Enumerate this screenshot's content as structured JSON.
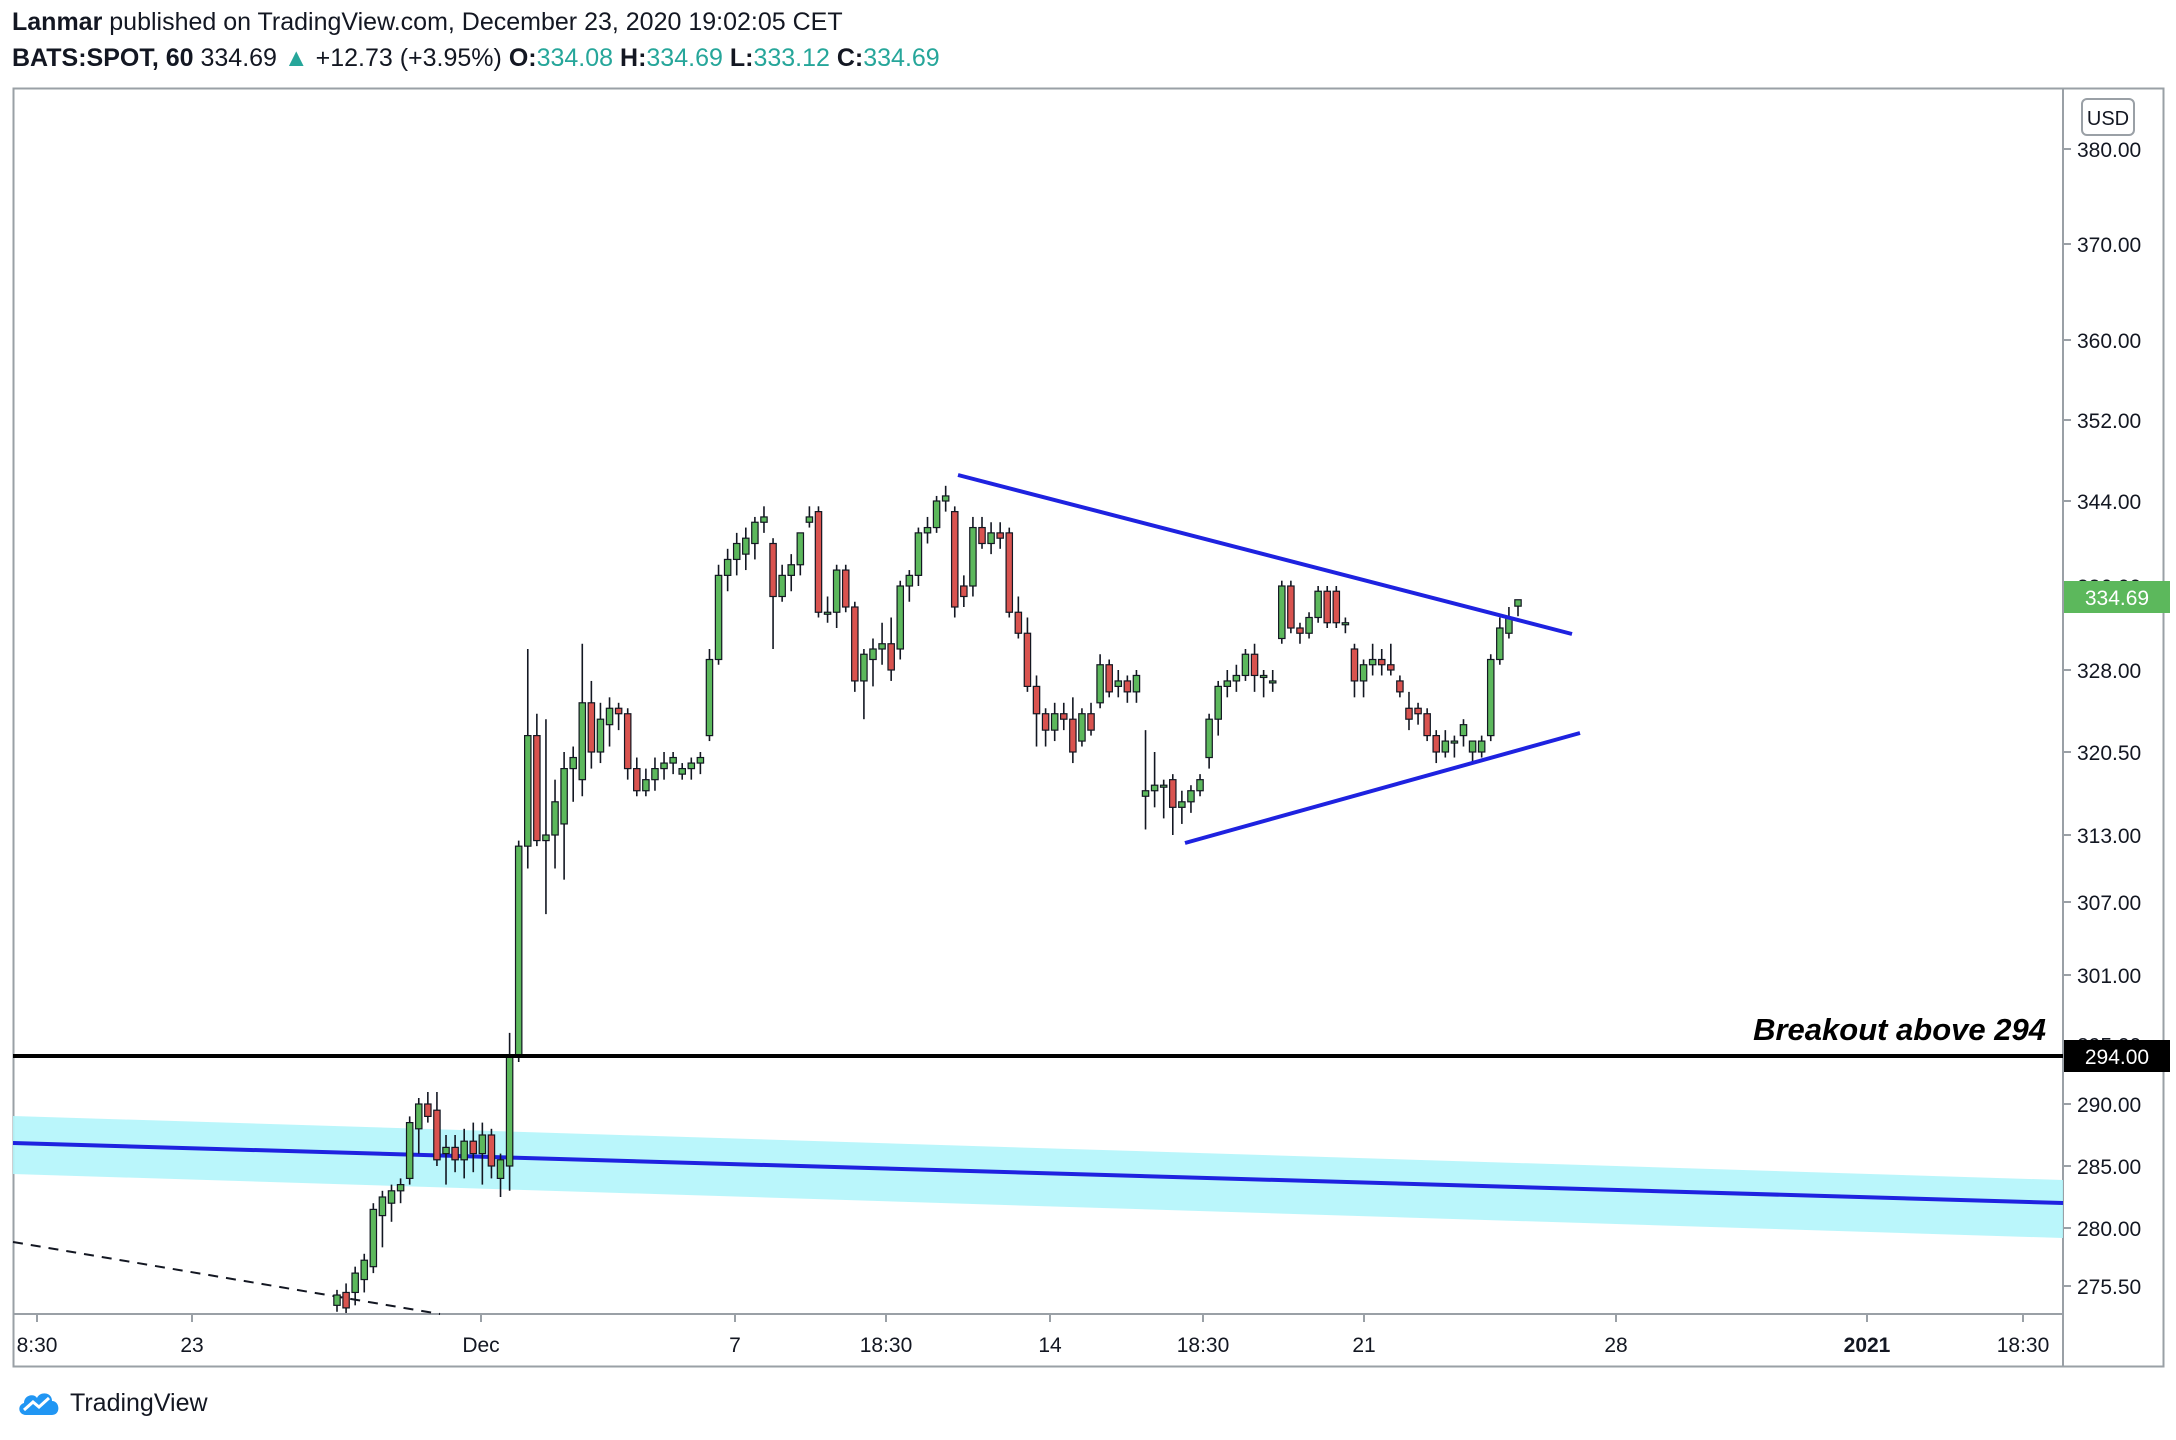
{
  "header": {
    "author": "Lanmar",
    "published_text": "published on TradingView.com, December 23, 2020 19:02:05 CET",
    "symbol_interval": "BATS:SPOT, 60",
    "last_price": "334.69",
    "change": "+12.73 (+3.95%)",
    "open_label": "O:",
    "open_value": "334.08",
    "high_label": "H:",
    "high_value": "334.69",
    "low_label": "L:",
    "low_value": "333.12",
    "close_label": "C:",
    "close_value": "334.69",
    "up_arrow_icon": "triangle-up-icon"
  },
  "chart_data": {
    "type": "candlestick",
    "currency": "USD",
    "y_ticks": [
      "380.00",
      "370.00",
      "360.00",
      "352.00",
      "344.00",
      "336.00",
      "328.00",
      "320.50",
      "313.00",
      "307.00",
      "301.00",
      "295.00",
      "290.00",
      "285.00",
      "280.00",
      "275.50"
    ],
    "x_ticks": [
      "8:30",
      "23",
      "Dec",
      "7",
      "18:30",
      "14",
      "18:30",
      "21",
      "28",
      "2021",
      "18:30"
    ],
    "price_label": "334.69",
    "level_label": "294.00",
    "annotation": "Breakout above 294",
    "colors": {
      "up": "#5cb85c",
      "down": "#d9534f",
      "trend": "#1e22e0",
      "channel": "#b2f5fb",
      "price_badge": "#5cb85c"
    },
    "horizontal_level": 294.0,
    "candles": [
      {
        "x": "Nov 25",
        "o": 274.0,
        "h": 275.2,
        "l": 273.5,
        "c": 274.8
      },
      {
        "x": "Nov 26",
        "o": 275.0,
        "h": 275.7,
        "l": 273.0,
        "c": 273.8
      },
      {
        "x": "Nov 27",
        "o": 275.0,
        "h": 277.0,
        "l": 274.0,
        "c": 276.5
      },
      {
        "x": "Nov 30",
        "o": 276.0,
        "h": 278.0,
        "l": 275.0,
        "c": 277.5
      },
      {
        "x": "Nov 30b",
        "o": 277.0,
        "h": 282.0,
        "l": 276.5,
        "c": 281.5
      },
      {
        "x": "Nov 30c",
        "o": 281.0,
        "h": 283.0,
        "l": 278.5,
        "c": 282.5
      },
      {
        "x": "Nov 30d",
        "o": 282.0,
        "h": 283.5,
        "l": 280.5,
        "c": 283.0
      },
      {
        "x": "Nov 30e",
        "o": 283.0,
        "h": 284.0,
        "l": 282.0,
        "c": 283.5
      },
      {
        "x": "Dec 1",
        "o": 284.0,
        "h": 289.0,
        "l": 283.5,
        "c": 288.5
      },
      {
        "x": "Dec 1b",
        "o": 288.0,
        "h": 290.5,
        "l": 286.0,
        "c": 290.0
      },
      {
        "x": "Dec 1c",
        "o": 290.0,
        "h": 291.0,
        "l": 288.5,
        "c": 289.0
      },
      {
        "x": "Dec 1d",
        "o": 289.5,
        "h": 291.0,
        "l": 285.0,
        "c": 285.5
      },
      {
        "x": "Dec 1e",
        "o": 286.0,
        "h": 287.5,
        "l": 283.5,
        "c": 286.5
      },
      {
        "x": "Dec 1f",
        "o": 286.5,
        "h": 287.5,
        "l": 284.5,
        "c": 285.5
      },
      {
        "x": "Dec 2",
        "o": 285.5,
        "h": 288.0,
        "l": 284.0,
        "c": 287.0
      },
      {
        "x": "Dec 2b",
        "o": 287.0,
        "h": 288.5,
        "l": 284.5,
        "c": 286.0
      },
      {
        "x": "Dec 2c",
        "o": 286.0,
        "h": 288.5,
        "l": 283.5,
        "c": 287.5
      },
      {
        "x": "Dec 2d",
        "o": 287.5,
        "h": 288.0,
        "l": 284.0,
        "c": 285.0
      },
      {
        "x": "Dec 2e",
        "o": 284.0,
        "h": 286.0,
        "l": 282.5,
        "c": 285.5
      },
      {
        "x": "Dec 2f",
        "o": 285.0,
        "h": 296.0,
        "l": 283.0,
        "c": 294.0
      },
      {
        "x": "Dec 3",
        "o": 294.0,
        "h": 312.5,
        "l": 293.5,
        "c": 312.0
      },
      {
        "x": "Dec 3b",
        "o": 312.0,
        "h": 330.0,
        "l": 310.0,
        "c": 322.0
      },
      {
        "x": "Dec 3c",
        "o": 322.0,
        "h": 324.0,
        "l": 312.0,
        "c": 312.5
      },
      {
        "x": "Dec 3d",
        "o": 312.5,
        "h": 323.5,
        "l": 306.0,
        "c": 313.0
      },
      {
        "x": "Dec 3e",
        "o": 313.0,
        "h": 318.0,
        "l": 310.0,
        "c": 316.0
      },
      {
        "x": "Dec 3f",
        "o": 314.0,
        "h": 320.5,
        "l": 309.0,
        "c": 319.0
      },
      {
        "x": "Dec 4",
        "o": 319.0,
        "h": 321.0,
        "l": 316.0,
        "c": 320.0
      },
      {
        "x": "Dec 4b",
        "o": 318.0,
        "h": 330.5,
        "l": 316.5,
        "c": 325.0
      },
      {
        "x": "Dec 4c",
        "o": 325.0,
        "h": 327.0,
        "l": 319.0,
        "c": 320.5
      },
      {
        "x": "Dec 4d",
        "o": 320.5,
        "h": 325.0,
        "l": 319.5,
        "c": 323.5
      },
      {
        "x": "Dec 4e",
        "o": 323.0,
        "h": 325.5,
        "l": 321.0,
        "c": 324.5
      },
      {
        "x": "Dec 4f",
        "o": 324.5,
        "h": 325.0,
        "l": 322.5,
        "c": 324.0
      },
      {
        "x": "Dec 4g",
        "o": 324.0,
        "h": 324.5,
        "l": 318.0,
        "c": 319.0
      },
      {
        "x": "Dec 4h",
        "o": 319.0,
        "h": 320.0,
        "l": 316.5,
        "c": 317.0
      },
      {
        "x": "Dec 4i",
        "o": 317.0,
        "h": 319.0,
        "l": 316.5,
        "c": 318.0
      },
      {
        "x": "Dec 4j",
        "o": 318.0,
        "h": 320.0,
        "l": 317.0,
        "c": 319.0
      },
      {
        "x": "Dec 4k",
        "o": 319.0,
        "h": 320.5,
        "l": 318.0,
        "c": 319.5
      },
      {
        "x": "Dec 4l",
        "o": 319.5,
        "h": 320.5,
        "l": 318.5,
        "c": 320.0
      },
      {
        "x": "Dec 4m",
        "o": 318.5,
        "h": 319.5,
        "l": 318.0,
        "c": 319.0
      },
      {
        "x": "Dec 4n",
        "o": 319.0,
        "h": 320.0,
        "l": 318.0,
        "c": 319.5
      },
      {
        "x": "Dec 4o",
        "o": 319.5,
        "h": 320.5,
        "l": 318.5,
        "c": 320.0
      },
      {
        "x": "Dec 7",
        "o": 322.0,
        "h": 330.0,
        "l": 321.5,
        "c": 329.0
      },
      {
        "x": "Dec 7b",
        "o": 329.0,
        "h": 338.0,
        "l": 328.5,
        "c": 337.0
      },
      {
        "x": "Dec 7c",
        "o": 337.0,
        "h": 339.5,
        "l": 335.5,
        "c": 338.5
      },
      {
        "x": "Dec 7d",
        "o": 338.5,
        "h": 341.0,
        "l": 337.0,
        "c": 340.0
      },
      {
        "x": "Dec 7e",
        "o": 339.0,
        "h": 341.5,
        "l": 337.5,
        "c": 340.5
      },
      {
        "x": "Dec 7f",
        "o": 340.0,
        "h": 342.5,
        "l": 338.5,
        "c": 342.0
      },
      {
        "x": "Dec 7g",
        "o": 342.0,
        "h": 343.5,
        "l": 341.0,
        "c": 342.5
      },
      {
        "x": "Dec 8",
        "o": 340.0,
        "h": 340.5,
        "l": 330.0,
        "c": 335.0
      },
      {
        "x": "Dec 8b",
        "o": 335.0,
        "h": 338.0,
        "l": 334.5,
        "c": 337.0
      },
      {
        "x": "Dec 8c",
        "o": 337.0,
        "h": 339.0,
        "l": 335.5,
        "c": 338.0
      },
      {
        "x": "Dec 8d",
        "o": 338.0,
        "h": 341.0,
        "l": 337.0,
        "c": 341.0
      },
      {
        "x": "Dec 8e",
        "o": 342.0,
        "h": 343.5,
        "l": 341.5,
        "c": 342.5
      },
      {
        "x": "Dec 8f",
        "o": 343.0,
        "h": 343.5,
        "l": 333.0,
        "c": 333.5
      },
      {
        "x": "Dec 9",
        "o": 333.5,
        "h": 335.0,
        "l": 332.5,
        "c": 333.5
      },
      {
        "x": "Dec 9b",
        "o": 333.5,
        "h": 338.0,
        "l": 332.0,
        "c": 337.5
      },
      {
        "x": "Dec 9c",
        "o": 337.5,
        "h": 338.0,
        "l": 333.5,
        "c": 334.0
      },
      {
        "x": "Dec 9d",
        "o": 334.0,
        "h": 334.5,
        "l": 326.0,
        "c": 327.0
      },
      {
        "x": "Dec 9e",
        "o": 327.0,
        "h": 330.0,
        "l": 323.5,
        "c": 329.5
      },
      {
        "x": "Dec 9f",
        "o": 329.0,
        "h": 331.0,
        "l": 326.5,
        "c": 330.0
      },
      {
        "x": "Dec 9g",
        "o": 330.0,
        "h": 332.5,
        "l": 328.5,
        "c": 330.5
      },
      {
        "x": "Dec 9h",
        "o": 330.5,
        "h": 333.0,
        "l": 327.0,
        "c": 328.0
      },
      {
        "x": "Dec 10",
        "o": 330.0,
        "h": 336.5,
        "l": 329.0,
        "c": 336.0
      },
      {
        "x": "Dec 10b",
        "o": 336.0,
        "h": 337.5,
        "l": 334.5,
        "c": 337.0
      },
      {
        "x": "Dec 10c",
        "o": 337.0,
        "h": 341.5,
        "l": 336.0,
        "c": 341.0
      },
      {
        "x": "Dec 10d",
        "o": 341.0,
        "h": 342.5,
        "l": 340.0,
        "c": 341.5
      },
      {
        "x": "Dec 10e",
        "o": 341.5,
        "h": 344.5,
        "l": 341.0,
        "c": 344.0
      },
      {
        "x": "Dec 10f",
        "o": 344.0,
        "h": 345.5,
        "l": 343.0,
        "c": 344.5
      },
      {
        "x": "Dec 11",
        "o": 343.0,
        "h": 343.5,
        "l": 333.0,
        "c": 334.0
      },
      {
        "x": "Dec 11b",
        "o": 336.0,
        "h": 337.0,
        "l": 334.0,
        "c": 335.0
      },
      {
        "x": "Dec 11c",
        "o": 336.0,
        "h": 342.5,
        "l": 335.0,
        "c": 341.5
      },
      {
        "x": "Dec 11d",
        "o": 341.5,
        "h": 342.5,
        "l": 339.5,
        "c": 340.0
      },
      {
        "x": "Dec 11e",
        "o": 340.0,
        "h": 342.0,
        "l": 339.0,
        "c": 341.0
      },
      {
        "x": "Dec 11f",
        "o": 341.0,
        "h": 342.0,
        "l": 339.5,
        "c": 340.5
      },
      {
        "x": "Dec 14",
        "o": 341.0,
        "h": 341.5,
        "l": 333.0,
        "c": 333.5
      },
      {
        "x": "Dec 14b",
        "o": 333.5,
        "h": 335.0,
        "l": 331.0,
        "c": 331.5
      },
      {
        "x": "Dec 14c",
        "o": 331.5,
        "h": 333.0,
        "l": 326.0,
        "c": 326.5
      },
      {
        "x": "Dec 14d",
        "o": 326.5,
        "h": 327.5,
        "l": 321.0,
        "c": 324.0
      },
      {
        "x": "Dec 14e",
        "o": 324.0,
        "h": 324.5,
        "l": 321.0,
        "c": 322.5
      },
      {
        "x": "Dec 15",
        "o": 322.5,
        "h": 325.0,
        "l": 321.5,
        "c": 324.0
      },
      {
        "x": "Dec 15b",
        "o": 324.0,
        "h": 325.0,
        "l": 322.5,
        "c": 323.5
      },
      {
        "x": "Dec 15c",
        "o": 323.5,
        "h": 325.5,
        "l": 319.5,
        "c": 320.5
      },
      {
        "x": "Dec 15d",
        "o": 321.5,
        "h": 324.5,
        "l": 321.0,
        "c": 324.0
      },
      {
        "x": "Dec 15e",
        "o": 324.0,
        "h": 325.0,
        "l": 322.0,
        "c": 322.5
      },
      {
        "x": "Dec 16",
        "o": 325.0,
        "h": 329.5,
        "l": 324.5,
        "c": 328.5
      },
      {
        "x": "Dec 16b",
        "o": 328.5,
        "h": 329.0,
        "l": 325.5,
        "c": 326.0
      },
      {
        "x": "Dec 16c",
        "o": 326.5,
        "h": 328.0,
        "l": 325.5,
        "c": 327.0
      },
      {
        "x": "Dec 16d",
        "o": 327.0,
        "h": 327.5,
        "l": 325.0,
        "c": 326.0
      },
      {
        "x": "Dec 16e",
        "o": 326.0,
        "h": 328.0,
        "l": 325.0,
        "c": 327.5
      },
      {
        "x": "Dec 17",
        "o": 316.5,
        "h": 322.5,
        "l": 313.5,
        "c": 317.0
      },
      {
        "x": "Dec 17b",
        "o": 317.0,
        "h": 320.5,
        "l": 315.5,
        "c": 317.5
      },
      {
        "x": "Dec 17c",
        "o": 317.5,
        "h": 318.0,
        "l": 314.5,
        "c": 317.5
      },
      {
        "x": "Dec 17d",
        "o": 318.0,
        "h": 318.5,
        "l": 313.0,
        "c": 315.5
      },
      {
        "x": "Dec 17e",
        "o": 315.5,
        "h": 317.0,
        "l": 314.0,
        "c": 316.0
      },
      {
        "x": "Dec 17f",
        "o": 316.0,
        "h": 317.5,
        "l": 315.0,
        "c": 317.0
      },
      {
        "x": "Dec 18",
        "o": 317.0,
        "h": 318.5,
        "l": 316.5,
        "c": 318.0
      },
      {
        "x": "Dec 18b",
        "o": 320.0,
        "h": 324.0,
        "l": 319.0,
        "c": 323.5
      },
      {
        "x": "Dec 18c",
        "o": 323.5,
        "h": 327.0,
        "l": 322.0,
        "c": 326.5
      },
      {
        "x": "Dec 18d",
        "o": 326.5,
        "h": 328.0,
        "l": 325.5,
        "c": 327.0
      },
      {
        "x": "Dec 18e",
        "o": 327.0,
        "h": 328.5,
        "l": 326.0,
        "c": 327.5
      },
      {
        "x": "Dec 18f",
        "o": 327.5,
        "h": 330.0,
        "l": 327.0,
        "c": 329.5
      },
      {
        "x": "Dec 18g",
        "o": 329.5,
        "h": 330.5,
        "l": 326.0,
        "c": 327.5
      },
      {
        "x": "Dec 18h",
        "o": 327.5,
        "h": 328.0,
        "l": 325.5,
        "c": 327.5
      },
      {
        "x": "Dec 18i",
        "o": 327.0,
        "h": 328.0,
        "l": 326.0,
        "c": 327.0
      },
      {
        "x": "Dec 21",
        "o": 331.0,
        "h": 336.5,
        "l": 330.5,
        "c": 336.0
      },
      {
        "x": "Dec 21b",
        "o": 336.0,
        "h": 336.5,
        "l": 331.5,
        "c": 332.0
      },
      {
        "x": "Dec 21c",
        "o": 332.0,
        "h": 332.5,
        "l": 330.5,
        "c": 331.5
      },
      {
        "x": "Dec 21d",
        "o": 331.5,
        "h": 333.5,
        "l": 331.0,
        "c": 333.0
      },
      {
        "x": "Dec 21e",
        "o": 333.0,
        "h": 336.0,
        "l": 332.5,
        "c": 335.5
      },
      {
        "x": "Dec 21f",
        "o": 335.5,
        "h": 336.0,
        "l": 332.0,
        "c": 332.5
      },
      {
        "x": "Dec 21g",
        "o": 335.5,
        "h": 336.0,
        "l": 332.0,
        "c": 332.5
      },
      {
        "x": "Dec 21h",
        "o": 332.5,
        "h": 333.0,
        "l": 331.5,
        "c": 332.5
      },
      {
        "x": "Dec 22",
        "o": 330.0,
        "h": 330.5,
        "l": 325.5,
        "c": 327.0
      },
      {
        "x": "Dec 22b",
        "o": 327.0,
        "h": 329.0,
        "l": 325.5,
        "c": 328.5
      },
      {
        "x": "Dec 22c",
        "o": 328.5,
        "h": 330.5,
        "l": 327.5,
        "c": 329.0
      },
      {
        "x": "Dec 22d",
        "o": 329.0,
        "h": 330.0,
        "l": 327.5,
        "c": 328.5
      },
      {
        "x": "Dec 22e",
        "o": 328.5,
        "h": 330.5,
        "l": 327.5,
        "c": 328.0
      },
      {
        "x": "Dec 22f",
        "o": 327.0,
        "h": 327.5,
        "l": 325.5,
        "c": 326.0
      },
      {
        "x": "Dec 22g",
        "o": 324.5,
        "h": 326.0,
        "l": 322.5,
        "c": 323.5
      },
      {
        "x": "Dec 22h",
        "o": 324.5,
        "h": 325.0,
        "l": 323.0,
        "c": 324.0
      },
      {
        "x": "Dec 22i",
        "o": 324.0,
        "h": 324.5,
        "l": 321.5,
        "c": 322.0
      },
      {
        "x": "Dec 23",
        "o": 322.0,
        "h": 322.5,
        "l": 319.5,
        "c": 320.5
      },
      {
        "x": "Dec 23b",
        "o": 320.5,
        "h": 322.5,
        "l": 320.0,
        "c": 321.5
      },
      {
        "x": "Dec 23c",
        "o": 321.5,
        "h": 322.0,
        "l": 320.0,
        "c": 321.5
      },
      {
        "x": "Dec 23d",
        "o": 322.0,
        "h": 323.5,
        "l": 321.0,
        "c": 323.0
      },
      {
        "x": "Dec 23e",
        "o": 320.5,
        "h": 321.5,
        "l": 319.5,
        "c": 321.5
      },
      {
        "x": "Dec 23f",
        "o": 320.5,
        "h": 322.0,
        "l": 320.0,
        "c": 321.5
      },
      {
        "x": "Dec 23g",
        "o": 322.0,
        "h": 329.5,
        "l": 321.5,
        "c": 329.0
      },
      {
        "x": "Dec 23h",
        "o": 329.0,
        "h": 333.0,
        "l": 328.5,
        "c": 332.0
      },
      {
        "x": "Dec 23i",
        "o": 331.5,
        "h": 334.0,
        "l": 331.0,
        "c": 333.0
      },
      {
        "x": "Dec 23j",
        "o": 334.08,
        "h": 334.69,
        "l": 333.12,
        "c": 334.69
      }
    ]
  },
  "footer": {
    "brand": "TradingView",
    "logo_icon": "tradingview-cloud-icon"
  }
}
